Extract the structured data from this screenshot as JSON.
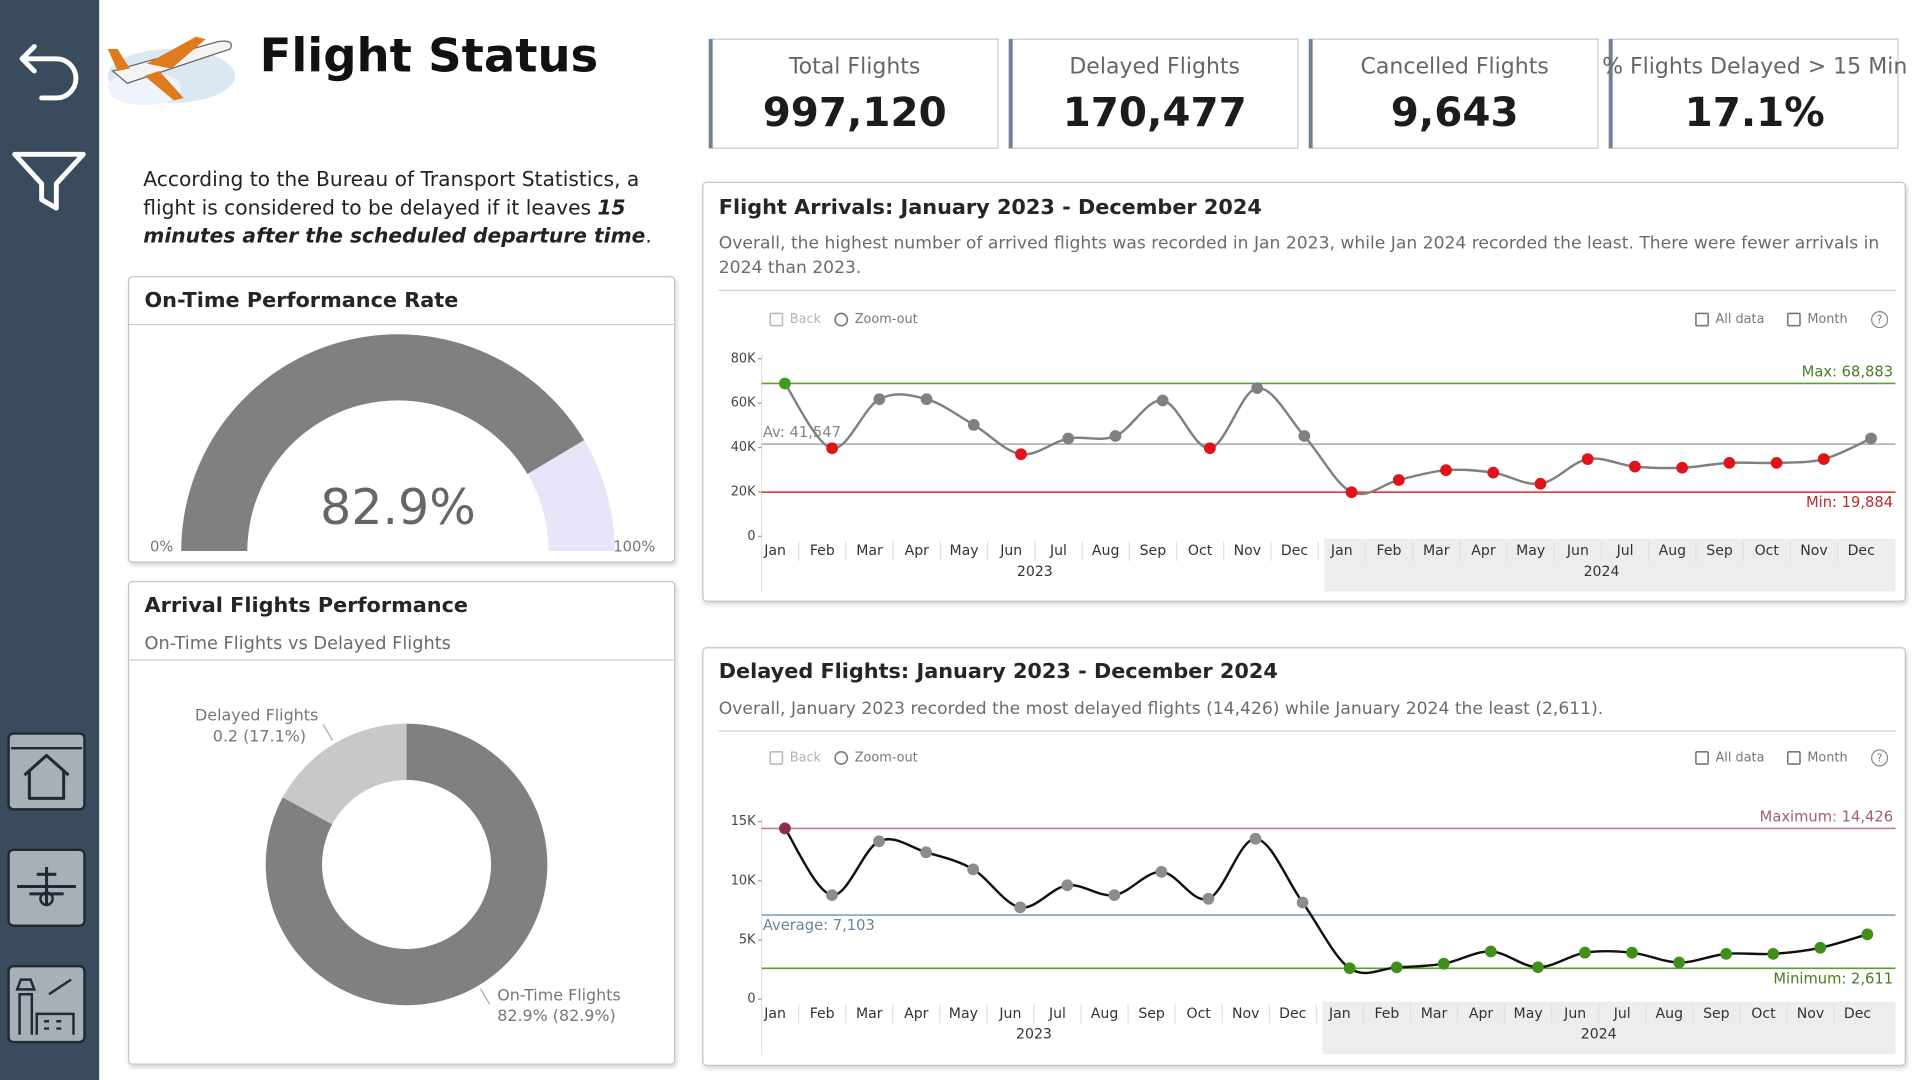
{
  "header": {
    "title": "Flight Status"
  },
  "note": {
    "text": "According to the Bureau of Transport Statistics, a flight is considered to be delayed if it leaves ",
    "emphasis": "15 minutes after the scheduled departure time",
    "end": "."
  },
  "kpis": [
    {
      "label": "Total Flights",
      "value": "997,120"
    },
    {
      "label": "Delayed Flights",
      "value": "170,477"
    },
    {
      "label": "Cancelled Flights",
      "value": "9,643"
    },
    {
      "label": "% Flights Delayed > 15 Min",
      "value": "17.1%"
    }
  ],
  "chart_data": [
    {
      "type": "gauge",
      "title": "On-Time Performance Rate",
      "value": 82.9,
      "value_label": "82.9%",
      "lim": [
        0,
        100
      ],
      "ticks": [
        {
          "value": 0,
          "label": "0%"
        },
        {
          "value": 100,
          "label": "100%"
        }
      ],
      "color": "#808080",
      "track_color": "#e7e5f8"
    },
    {
      "type": "donut",
      "title": "Arrival Flights Performance",
      "subtitle": "On-Time Flights vs Delayed Flights",
      "categories": [
        "On-Time Flights",
        "Delayed Flights"
      ],
      "values": [
        82.9,
        17.1
      ],
      "value_labels": [
        "82.9% (82.9%)",
        "0.2 (17.1%)"
      ],
      "colors": [
        "#808080",
        "#c8c8c8"
      ]
    },
    {
      "type": "line",
      "title": "Flight Arrivals: January 2023 - December 2024",
      "subtitle": "Overall, the highest number of arrived flights was recorded in Jan 2023, while Jan 2024 recorded the least. There were fewer arrivals in 2024 than 2023.",
      "toolbar": [
        "Back",
        "Zoom-out",
        "All data",
        "Month"
      ],
      "help": "?",
      "categories": [
        "Jan",
        "Feb",
        "Mar",
        "Apr",
        "May",
        "Jun",
        "Jul",
        "Aug",
        "Sep",
        "Oct",
        "Nov",
        "Dec",
        "Jan",
        "Feb",
        "Mar",
        "Apr",
        "May",
        "Jun",
        "Jul",
        "Aug",
        "Sep",
        "Oct",
        "Nov",
        "Dec"
      ],
      "groups": [
        "2023",
        "2024"
      ],
      "shaded_group": 1,
      "values": [
        68883,
        39700,
        61800,
        61800,
        50200,
        37000,
        44100,
        45200,
        61200,
        39700,
        66800,
        45200,
        19884,
        25400,
        29800,
        28700,
        23700,
        34800,
        31400,
        30900,
        33100,
        33100,
        34800,
        44100
      ],
      "color": "#808080",
      "marker_colors": {
        "max": "#3f9a1f",
        "above": "#808080",
        "below": "#e0131a"
      },
      "reference_lines": {
        "max": {
          "label": "Max: 68,883",
          "value": 68883,
          "color": "#5aa02c",
          "side": "right",
          "position": "above"
        },
        "average": {
          "label": "Av: 41,547",
          "value": 41547,
          "color": "#a8a8a8",
          "side": "left",
          "position": "above"
        },
        "min": {
          "label": "Min: 19,884",
          "value": 19884,
          "color": "#e53935",
          "side": "right",
          "position": "below"
        }
      },
      "ylim": [
        0,
        80000
      ],
      "yticks": [
        0,
        {
          "value": 20000,
          "label": "20K"
        },
        {
          "value": 40000,
          "label": "40K"
        },
        {
          "value": 60000,
          "label": "60K"
        },
        {
          "value": 80000,
          "label": "80K"
        }
      ],
      "grid": false
    },
    {
      "type": "line",
      "title": "Delayed Flights: January 2023 - December 2024",
      "subtitle": "Overall, January 2023 recorded the most delayed flights (14,426) while January 2024 the least (2,611).",
      "toolbar": [
        "Back",
        "Zoom-out",
        "All data",
        "Month"
      ],
      "help": "?",
      "categories": [
        "Jan",
        "Feb",
        "Mar",
        "Apr",
        "May",
        "Jun",
        "Jul",
        "Aug",
        "Sep",
        "Oct",
        "Nov",
        "Dec",
        "Jan",
        "Feb",
        "Mar",
        "Apr",
        "May",
        "Jun",
        "Jul",
        "Aug",
        "Sep",
        "Oct",
        "Nov",
        "Dec"
      ],
      "groups": [
        "2023",
        "2024"
      ],
      "shaded_group": 1,
      "values": [
        14426,
        8790,
        13340,
        12410,
        10970,
        7760,
        9620,
        8790,
        10760,
        8480,
        13550,
        8170,
        2611,
        2690,
        3000,
        4030,
        2700,
        3930,
        3930,
        3100,
        3830,
        3830,
        4340,
        5480
      ],
      "color": "#111111",
      "marker_colors": {
        "max": "#8b2f46",
        "above": "#8c8c8c",
        "below": "#3f8f1a"
      },
      "reference_lines": {
        "max": {
          "label": "Maximum: 14,426",
          "value": 14426,
          "color": "#c77b8a",
          "side": "right",
          "position": "above"
        },
        "average": {
          "label": "Average: 7,103",
          "value": 7103,
          "color": "#7fa6c0",
          "side": "left",
          "position": "below"
        },
        "min": {
          "label": "Minimum: 2,611",
          "value": 2611,
          "color": "#5a9e2a",
          "side": "right",
          "position": "below"
        }
      },
      "ylim": [
        0,
        15000
      ],
      "yticks": [
        0,
        {
          "value": 5000,
          "label": "5K"
        },
        {
          "value": 10000,
          "label": "10K"
        },
        {
          "value": 15000,
          "label": "15K"
        }
      ],
      "grid": false
    }
  ]
}
